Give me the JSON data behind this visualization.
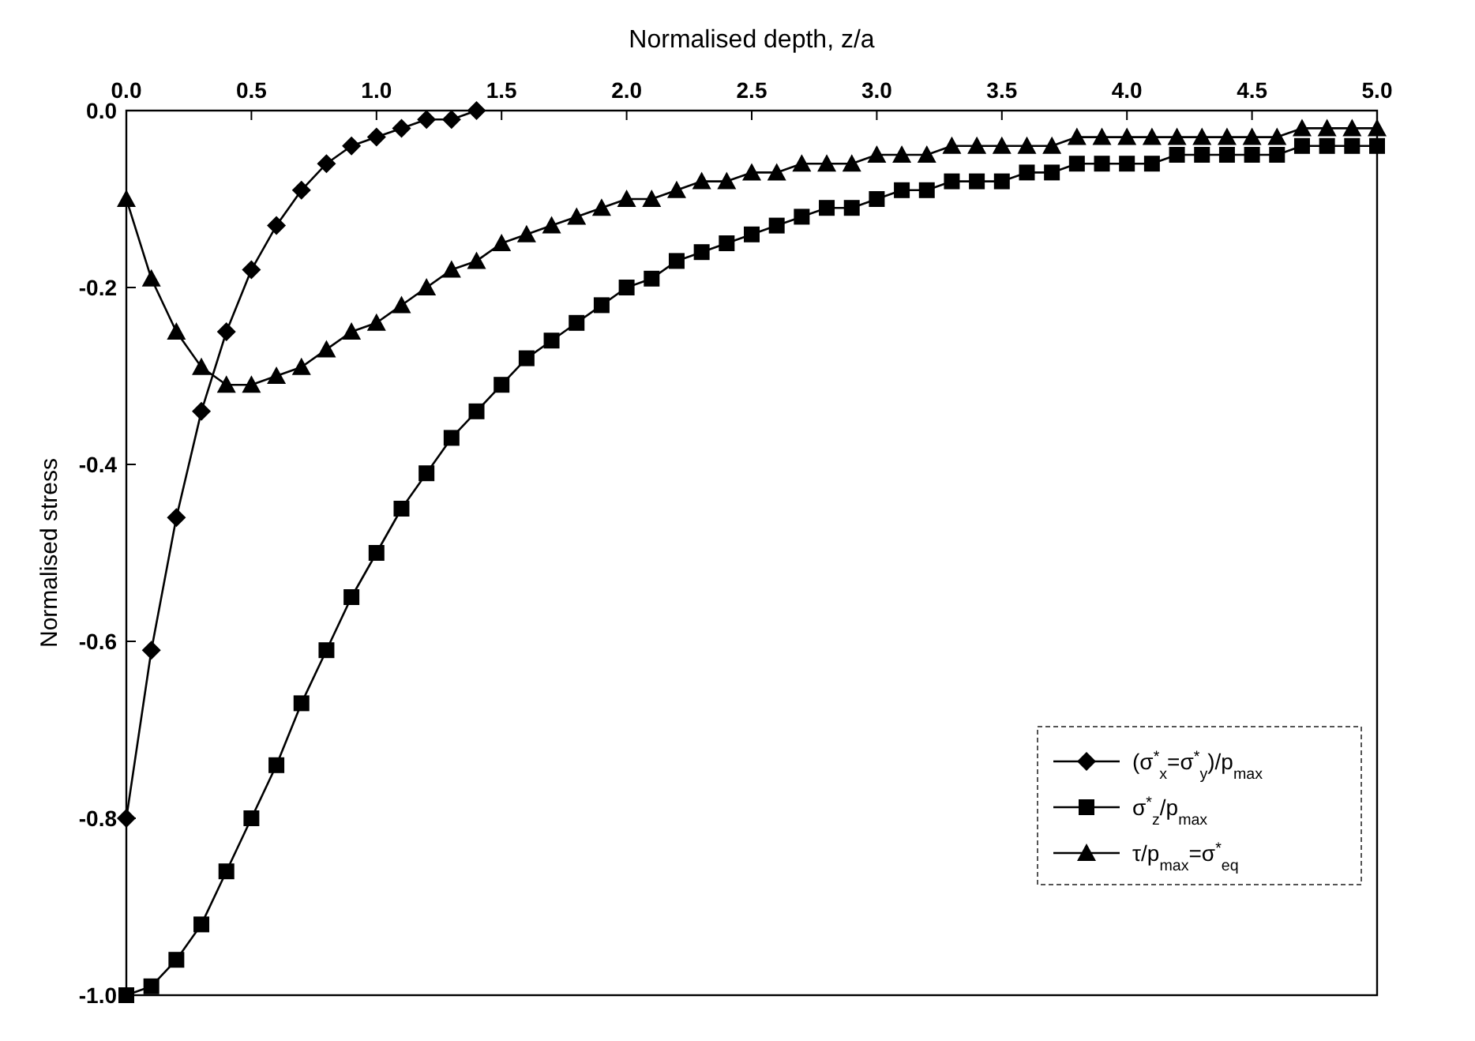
{
  "chart_data": {
    "type": "line",
    "xlabel": "Normalised depth,  z/a",
    "ylabel": "Normalised stress",
    "xlim": [
      0,
      5
    ],
    "xticks": [
      {
        "value": 0,
        "label": "0.0"
      },
      0.5,
      {
        "value": 1,
        "label": "1.0"
      },
      1.5,
      {
        "value": 2,
        "label": "2.0"
      },
      2.5,
      {
        "value": 3,
        "label": "3.0"
      },
      3.5,
      {
        "value": 4,
        "label": "4.0"
      },
      4.5,
      {
        "value": 5,
        "label": "5.0"
      }
    ],
    "ylim": [
      -1,
      0
    ],
    "yticks": [
      {
        "value": -1,
        "label": "-1.0"
      },
      -0.8,
      -0.6,
      -0.4,
      -0.2,
      {
        "value": 0,
        "label": "0.0"
      }
    ],
    "grid": false,
    "legend": "bottom right",
    "line_style": "solid",
    "x": [
      0,
      0.1,
      0.2,
      0.3,
      0.4,
      0.5,
      0.6,
      0.7,
      0.8,
      0.9,
      1,
      1.1,
      1.2,
      1.3,
      1.4,
      1.5,
      1.6,
      1.7,
      1.8,
      1.9,
      2,
      2.1,
      2.2,
      2.3,
      2.4,
      2.5,
      2.6,
      2.7,
      2.8,
      2.9,
      3,
      3.1,
      3.2,
      3.3,
      3.4,
      3.5,
      3.6,
      3.7,
      3.8,
      3.9,
      4,
      4.1,
      4.2,
      4.3,
      4.4,
      4.5,
      4.6,
      4.7,
      4.8,
      4.9,
      5
    ],
    "series": [
      {
        "name": "(σ$^{*}$$_{x}$=σ$^{*}$$_{y}$)/p$_{max}$",
        "color": "#000000",
        "marker": "diamond",
        "x": [
          0,
          0.1,
          0.2,
          0.3,
          0.4,
          0.5,
          0.6,
          0.7,
          0.8,
          0.9,
          1,
          1.1,
          1.2,
          1.3,
          1.4
        ],
        "values": [
          -0.8,
          -0.61,
          -0.46,
          -0.34,
          -0.25,
          -0.18,
          -0.13,
          -0.09,
          -0.06,
          -0.04,
          -0.03,
          -0.02,
          -0.01,
          -0.01,
          0
        ]
      },
      {
        "name": "σ$^{*}$$_{z}$/p$_{max}$",
        "color": "#000000",
        "marker": "square",
        "values": [
          -1,
          -0.99,
          -0.96,
          -0.92,
          -0.86,
          -0.8,
          -0.74,
          -0.67,
          -0.61,
          -0.55,
          -0.5,
          -0.45,
          -0.41,
          -0.37,
          -0.34,
          -0.31,
          -0.28,
          -0.26,
          -0.24,
          -0.22,
          -0.2,
          -0.19,
          -0.17,
          -0.16,
          -0.15,
          -0.14,
          -0.13,
          -0.12,
          -0.11,
          -0.11,
          -0.1,
          -0.09,
          -0.09,
          -0.08,
          -0.08,
          -0.08,
          -0.07,
          -0.07,
          -0.06,
          -0.06,
          -0.06,
          -0.06,
          -0.05,
          -0.05,
          -0.05,
          -0.05,
          -0.05,
          -0.04,
          -0.04,
          -0.04,
          -0.04
        ]
      },
      {
        "name": "τ/p$_{max}$=σ$^{*}$$_{eq}$",
        "color": "#000000",
        "marker": "triangle",
        "values": [
          -0.1,
          -0.19,
          -0.25,
          -0.29,
          -0.31,
          -0.31,
          -0.3,
          -0.29,
          -0.27,
          -0.25,
          -0.24,
          -0.22,
          -0.2,
          -0.18,
          -0.17,
          -0.15,
          -0.14,
          -0.13,
          -0.12,
          -0.11,
          -0.1,
          -0.1,
          -0.09,
          -0.08,
          -0.08,
          -0.07,
          -0.07,
          -0.06,
          -0.06,
          -0.06,
          -0.05,
          -0.05,
          -0.05,
          -0.04,
          -0.04,
          -0.04,
          -0.04,
          -0.04,
          -0.03,
          -0.03,
          -0.03,
          -0.03,
          -0.03,
          -0.03,
          -0.03,
          -0.03,
          -0.03,
          -0.02,
          -0.02,
          -0.02,
          -0.02
        ]
      }
    ]
  }
}
